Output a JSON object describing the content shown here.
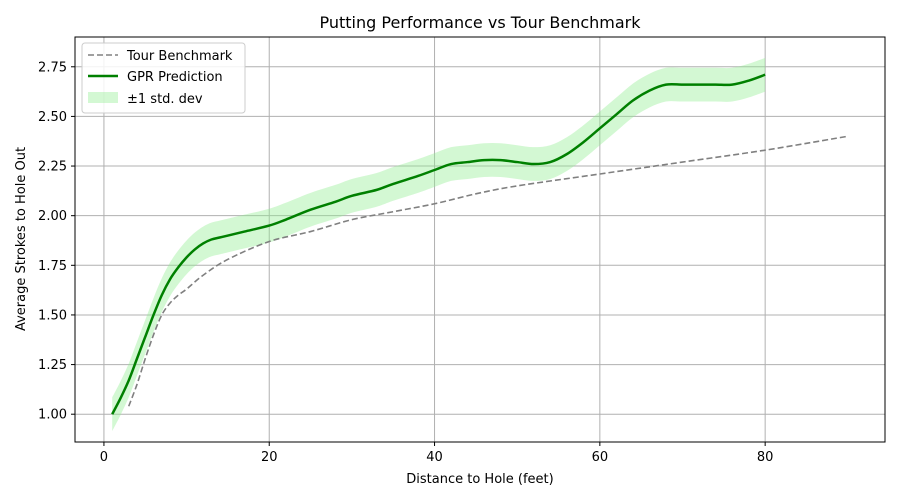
{
  "chart_data": {
    "type": "line",
    "title": "Putting Performance vs Tour Benchmark",
    "xlabel": "Distance to Hole (feet)",
    "ylabel": "Average Strokes to Hole Out",
    "xlim": [
      -3.5,
      94.5
    ],
    "ylim": [
      0.86,
      2.9
    ],
    "xticks": [
      0,
      20,
      40,
      60,
      80
    ],
    "yticks": [
      1.0,
      1.25,
      1.5,
      1.75,
      2.0,
      2.25,
      2.5,
      2.75
    ],
    "ytick_labels": [
      "1.00",
      "1.25",
      "1.50",
      "1.75",
      "2.00",
      "2.25",
      "2.50",
      "2.75"
    ],
    "grid": true,
    "legend_position": "upper-left",
    "series": [
      {
        "name": "Tour Benchmark",
        "style": "dashed",
        "color": "#808080",
        "x": [
          3,
          4,
          5,
          6,
          7,
          8,
          9,
          10,
          12,
          15,
          20,
          25,
          30,
          35,
          40,
          45,
          50,
          60,
          70,
          80,
          90
        ],
        "y": [
          1.04,
          1.15,
          1.28,
          1.4,
          1.5,
          1.56,
          1.6,
          1.63,
          1.7,
          1.78,
          1.87,
          1.92,
          1.98,
          2.02,
          2.06,
          2.11,
          2.15,
          2.21,
          2.27,
          2.33,
          2.4
        ]
      },
      {
        "name": "GPR Prediction",
        "style": "solid",
        "color": "#008000",
        "x": [
          1,
          2,
          3,
          4,
          5,
          6,
          7,
          8,
          9,
          10,
          11,
          12,
          13,
          14,
          15,
          17,
          20,
          22,
          25,
          28,
          30,
          33,
          35,
          38,
          40,
          42,
          44,
          46,
          48,
          50,
          52,
          54,
          56,
          58,
          60,
          62,
          64,
          66,
          68,
          70,
          72,
          74,
          76,
          78,
          80
        ],
        "y": [
          1.0,
          1.08,
          1.17,
          1.28,
          1.39,
          1.5,
          1.6,
          1.68,
          1.74,
          1.79,
          1.83,
          1.86,
          1.88,
          1.89,
          1.9,
          1.92,
          1.95,
          1.98,
          2.03,
          2.07,
          2.1,
          2.13,
          2.16,
          2.2,
          2.23,
          2.26,
          2.27,
          2.28,
          2.28,
          2.27,
          2.26,
          2.27,
          2.31,
          2.37,
          2.44,
          2.51,
          2.58,
          2.63,
          2.66,
          2.66,
          2.66,
          2.66,
          2.66,
          2.68,
          2.71
        ]
      }
    ],
    "band": {
      "name": "±1 std. dev",
      "color": "#90ee90",
      "of_series": "GPR Prediction",
      "std": 0.085
    }
  }
}
